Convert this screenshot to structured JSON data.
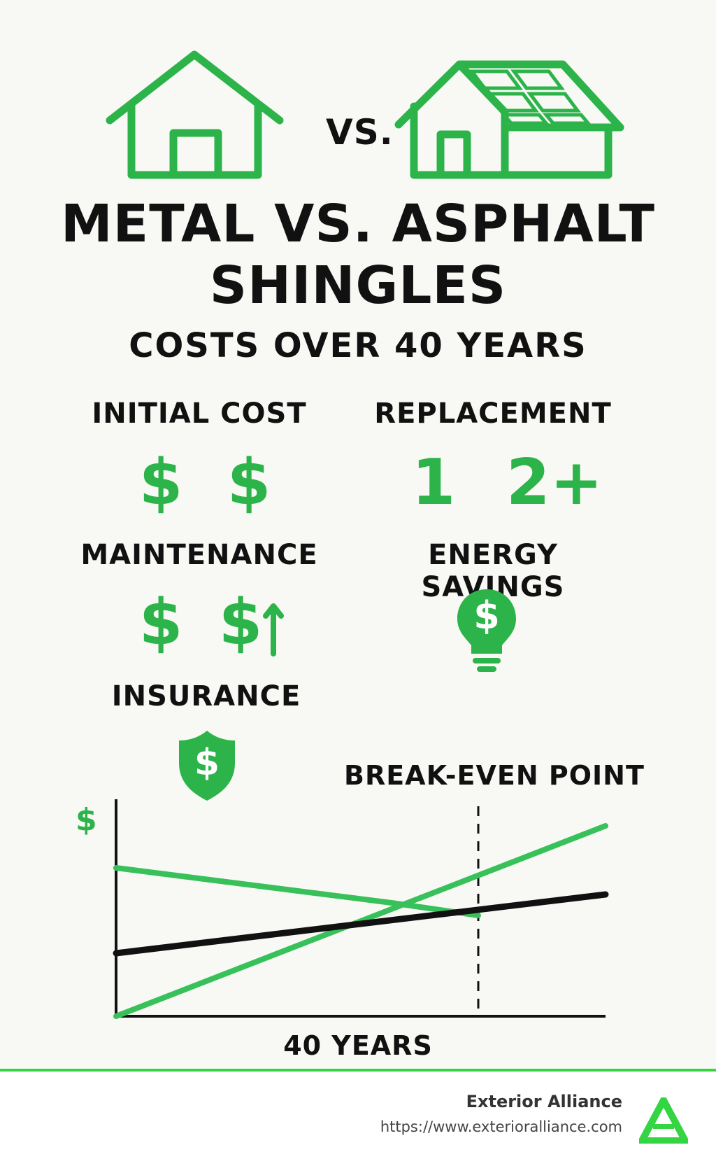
{
  "header": {
    "vs_label": "VS.",
    "title_line1": "METAL VS. ASPHALT",
    "title_line2": "SHINGLES",
    "subtitle": "COSTS OVER 40 YEARS"
  },
  "sections": {
    "initial_cost": {
      "label": "INITIAL COST",
      "left": "$",
      "right": "$"
    },
    "replacement": {
      "label": "REPLACEMENT",
      "left": "1",
      "right": "2+"
    },
    "maintenance": {
      "label": "MAINTENANCE",
      "left": "$",
      "right": "$"
    },
    "energy_savings": {
      "label": "ENERGY SAVINGS",
      "icon": "lightbulb-dollar-icon",
      "symbol": "$"
    },
    "insurance": {
      "label": "INSURANCE",
      "icon": "shield-dollar-icon",
      "symbol": "$"
    }
  },
  "chart": {
    "title": "BREAK-EVEN POINT",
    "y_symbol": "$",
    "x_label": "40 YEARS"
  },
  "footer": {
    "brand_name": "Exterior Alliance",
    "url": "https://www.exterioralliance.com"
  },
  "colors": {
    "accent": "#2cb34a",
    "footer_line": "#33d642",
    "background": "#f8f9f4"
  }
}
